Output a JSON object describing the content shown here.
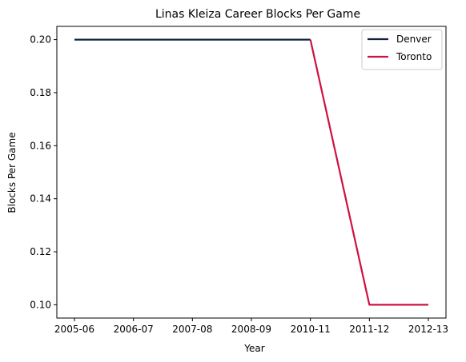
{
  "chart_data": {
    "type": "line",
    "title": "Linas Kleiza Career Blocks Per Game",
    "xlabel": "Year",
    "ylabel": "Blocks Per Game",
    "categories": [
      "2005-06",
      "2006-07",
      "2007-08",
      "2008-09",
      "2010-11",
      "2011-12",
      "2012-13"
    ],
    "ylim": [
      0.095,
      0.205
    ],
    "yticks": [
      0.1,
      0.12,
      0.14,
      0.16,
      0.18,
      0.2
    ],
    "ytick_labels": [
      "0.10",
      "0.12",
      "0.14",
      "0.16",
      "0.18",
      "0.20"
    ],
    "grid": false,
    "legend_position": "top-right",
    "series": [
      {
        "name": "Denver",
        "color": "#0E2240",
        "points": [
          {
            "x": "2005-06",
            "y": 0.2
          },
          {
            "x": "2006-07",
            "y": 0.2
          },
          {
            "x": "2007-08",
            "y": 0.2
          },
          {
            "x": "2008-09",
            "y": 0.2
          },
          {
            "x": "2010-11",
            "y": 0.2
          }
        ]
      },
      {
        "name": "Toronto",
        "color": "#CE1141",
        "points": [
          {
            "x": "2010-11",
            "y": 0.2
          },
          {
            "x": "2011-12",
            "y": 0.1
          },
          {
            "x": "2012-13",
            "y": 0.1
          }
        ]
      }
    ]
  }
}
